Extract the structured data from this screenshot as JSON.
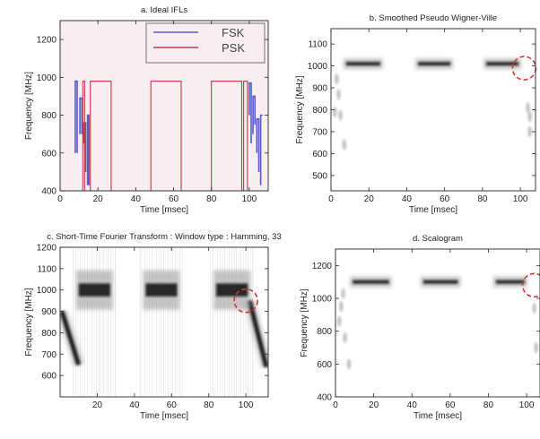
{
  "colors": {
    "fsk": "#5a5ac8",
    "psk": "#c23a4a",
    "ideal_bg": "#f6eef1",
    "marker": "#e03030",
    "tf_energy": "#111111"
  },
  "chart_data": [
    {
      "id": "a",
      "type": "line",
      "title": "a. Ideal IFLs",
      "xlabel": "Time [msec]",
      "ylabel": "Frequency [MHz]",
      "xlim": [
        0,
        110
      ],
      "ylim": [
        400,
        1300
      ],
      "xticks": [
        0,
        20,
        40,
        60,
        80,
        100
      ],
      "yticks": [
        400,
        600,
        800,
        1000,
        1200
      ],
      "background": "pink",
      "legend": {
        "placement": "top-right",
        "entries": [
          "FSK",
          "PSK"
        ]
      },
      "series": [
        {
          "name": "FSK",
          "segments": [
            [
              [
                8,
                600
              ],
              [
                8,
                980
              ],
              [
                9,
                980
              ],
              [
                9,
                600
              ]
            ],
            [
              [
                10.5,
                700
              ],
              [
                10.5,
                890
              ],
              [
                11.5,
                890
              ],
              [
                11.5,
                700
              ]
            ],
            [
              [
                12.5,
                650
              ],
              [
                12.5,
                760
              ],
              [
                13.5,
                760
              ],
              [
                13.5,
                500
              ]
            ],
            [
              [
                14.5,
                430
              ],
              [
                14.5,
                800
              ],
              [
                15.2,
                800
              ],
              [
                15.2,
                430
              ]
            ],
            [
              [
                100,
                800
              ],
              [
                100,
                970
              ],
              [
                101,
                970
              ],
              [
                101,
                650
              ]
            ],
            [
              [
                102,
                700
              ],
              [
                102,
                900
              ],
              [
                103,
                900
              ],
              [
                103,
                750
              ]
            ],
            [
              [
                104,
                600
              ],
              [
                104,
                780
              ],
              [
                105,
                780
              ],
              [
                105,
                500
              ]
            ],
            [
              [
                106,
                430
              ],
              [
                106,
                800
              ],
              [
                107,
                800
              ]
            ]
          ]
        },
        {
          "name": "PSK",
          "segments": [
            [
              [
                12,
                400
              ],
              [
                12,
                980
              ],
              [
                13,
                980
              ],
              [
                13,
                400
              ]
            ],
            [
              [
                16,
                400
              ],
              [
                16,
                980
              ],
              [
                27,
                980
              ],
              [
                27,
                400
              ]
            ],
            [
              [
                48,
                400
              ],
              [
                48,
                980
              ],
              [
                64,
                980
              ],
              [
                64,
                400
              ]
            ],
            [
              [
                80,
                400
              ],
              [
                80,
                980
              ],
              [
                96,
                980
              ],
              [
                96,
                400
              ]
            ],
            [
              [
                97,
                400
              ],
              [
                97,
                980
              ],
              [
                99,
                980
              ],
              [
                99,
                400
              ]
            ]
          ]
        }
      ]
    },
    {
      "id": "b",
      "type": "heatmap",
      "title": "b. Smoothed Pseudo Wigner-Ville",
      "xlabel": "Time [msec]",
      "ylabel": "Frequency [MHz]",
      "xlim": [
        0,
        108
      ],
      "ylim": [
        430,
        1170
      ],
      "xticks": [
        0,
        20,
        40,
        60,
        80,
        100
      ],
      "yticks": [
        500,
        600,
        700,
        800,
        900,
        1000,
        1100
      ],
      "bands": [
        {
          "x": [
            8,
            26
          ],
          "y": 1010
        },
        {
          "x": [
            46,
            63
          ],
          "y": 1010
        },
        {
          "x": [
            82,
            99
          ],
          "y": 1010
        }
      ],
      "faint_spots": [
        {
          "x": 2,
          "y": 790
        },
        {
          "x": 3,
          "y": 940
        },
        {
          "x": 4,
          "y": 870
        },
        {
          "x": 5,
          "y": 775
        },
        {
          "x": 7,
          "y": 640
        },
        {
          "x": 104,
          "y": 810
        },
        {
          "x": 105,
          "y": 770
        },
        {
          "x": 105,
          "y": 700
        }
      ],
      "marker": {
        "x": 102,
        "y": 990
      }
    },
    {
      "id": "c",
      "type": "heatmap",
      "title": "c. Short-Time Fourier Transform : Window type : Hamming, 33",
      "xlabel": "Time [msec]",
      "ylabel": "Frequency [MHz]",
      "xlim": [
        0,
        112
      ],
      "ylim": [
        500,
        1200
      ],
      "xticks": [
        20,
        40,
        60,
        80,
        100
      ],
      "yticks": [
        600,
        700,
        800,
        900,
        1000,
        1100,
        1200
      ],
      "bands": [
        {
          "x": [
            10,
            27
          ],
          "y": 1000
        },
        {
          "x": [
            46,
            63
          ],
          "y": 1000
        },
        {
          "x": [
            84,
            101
          ],
          "y": 1000
        }
      ],
      "chirps": [
        {
          "from": [
            1,
            900
          ],
          "to": [
            10,
            650
          ]
        },
        {
          "from": [
            102,
            950
          ],
          "to": [
            111,
            640
          ]
        }
      ],
      "marker": {
        "x": 100,
        "y": 950
      }
    },
    {
      "id": "d",
      "type": "heatmap",
      "title": "d. Scalogram",
      "xlabel": "Time [msec]",
      "ylabel": "Frequency [MHz]",
      "xlim": [
        0,
        107
      ],
      "ylim": [
        400,
        1300
      ],
      "xticks": [
        0,
        20,
        40,
        60,
        80,
        100
      ],
      "yticks": [
        400,
        600,
        800,
        1000,
        1200
      ],
      "bands": [
        {
          "x": [
            9,
            28
          ],
          "y": 1100
        },
        {
          "x": [
            46,
            64
          ],
          "y": 1100
        },
        {
          "x": [
            84,
            99
          ],
          "y": 1100
        }
      ],
      "faint_spots": [
        {
          "x": 2,
          "y": 860
        },
        {
          "x": 3,
          "y": 950
        },
        {
          "x": 4,
          "y": 1030
        },
        {
          "x": 5,
          "y": 760
        },
        {
          "x": 7,
          "y": 600
        },
        {
          "x": 104,
          "y": 940
        },
        {
          "x": 105,
          "y": 700
        }
      ],
      "marker": {
        "x": 104,
        "y": 1080
      }
    }
  ]
}
